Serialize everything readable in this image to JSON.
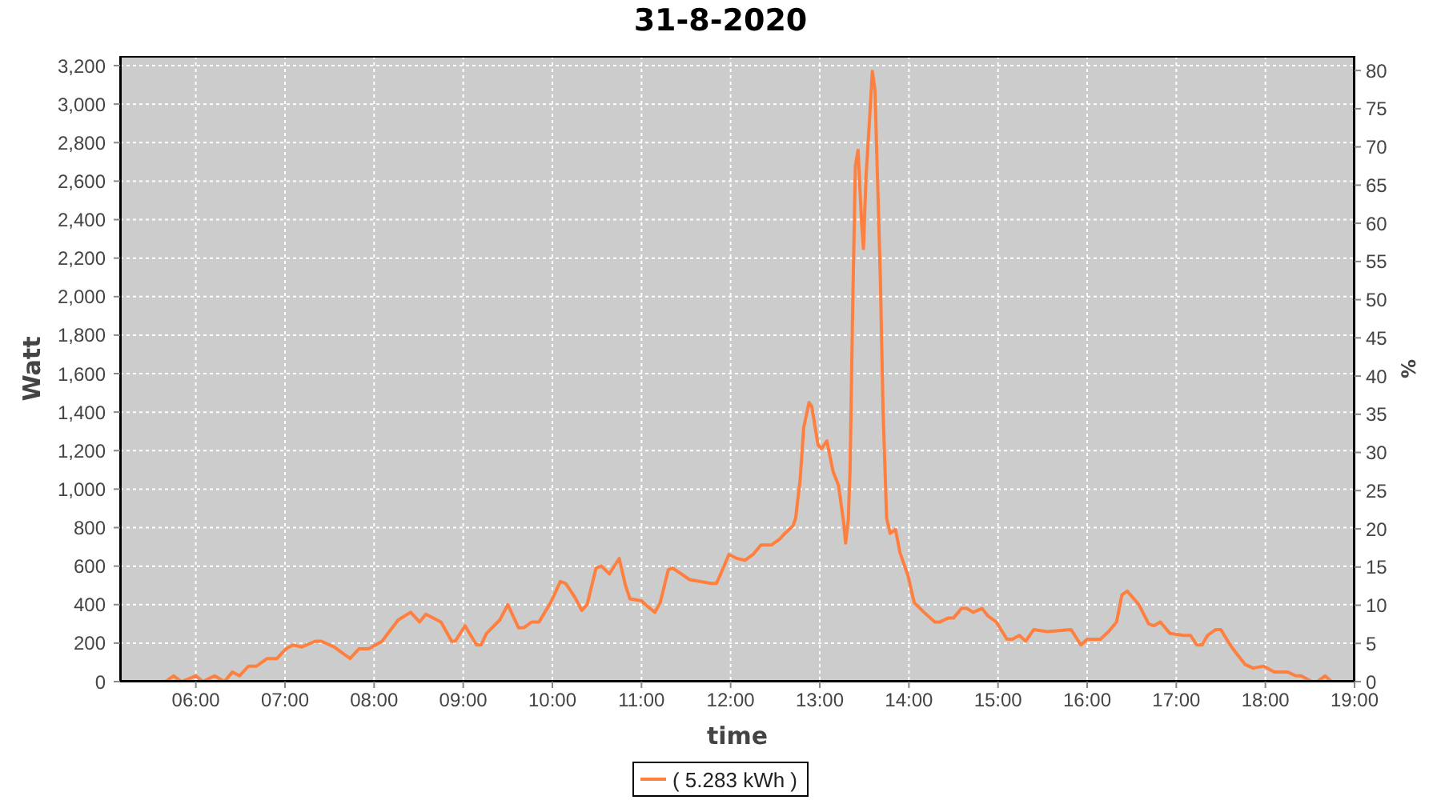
{
  "chart_data": {
    "type": "line",
    "title": "31-8-2020",
    "xlabel": "time",
    "ylabel": "Watt",
    "y2label": "%",
    "x": [
      5.39,
      5.66,
      5.75,
      5.84,
      6.0,
      6.08,
      6.21,
      6.32,
      6.41,
      6.49,
      6.59,
      6.68,
      6.8,
      6.91,
      7.01,
      7.09,
      7.19,
      7.34,
      7.41,
      7.55,
      7.73,
      7.83,
      7.94,
      8.09,
      8.17,
      8.27,
      8.41,
      8.51,
      8.58,
      8.75,
      8.87,
      8.91,
      9.02,
      9.15,
      9.2,
      9.26,
      9.41,
      9.5,
      9.62,
      9.68,
      9.77,
      9.85,
      9.98,
      10.09,
      10.15,
      10.25,
      10.33,
      10.39,
      10.49,
      10.55,
      10.64,
      10.75,
      10.82,
      10.87,
      11.0,
      11.07,
      11.15,
      11.21,
      11.3,
      11.35,
      11.54,
      11.78,
      11.84,
      11.88,
      11.98,
      12.07,
      12.16,
      12.25,
      12.34,
      12.46,
      12.55,
      12.61,
      12.7,
      12.73,
      12.78,
      12.82,
      12.88,
      12.91,
      12.98,
      13.02,
      13.08,
      13.15,
      13.21,
      13.27,
      13.29,
      13.32,
      13.34,
      13.37,
      13.4,
      13.43,
      13.47,
      13.49,
      13.52,
      13.56,
      13.59,
      13.62,
      13.64,
      13.68,
      13.71,
      13.75,
      13.79,
      13.85,
      13.9,
      13.99,
      14.06,
      14.17,
      14.29,
      14.35,
      14.44,
      14.5,
      14.59,
      14.65,
      14.72,
      14.82,
      14.89,
      14.98,
      15.1,
      15.16,
      15.24,
      15.31,
      15.4,
      15.55,
      15.82,
      15.93,
      16.0,
      16.15,
      16.24,
      16.33,
      16.39,
      16.45,
      16.58,
      16.69,
      16.75,
      16.82,
      16.93,
      17.08,
      17.16,
      17.23,
      17.29,
      17.35,
      17.44,
      17.5,
      17.62,
      17.77,
      17.86,
      17.98,
      18.1,
      18.25,
      18.34,
      18.4,
      18.52,
      18.58,
      18.67,
      18.74
    ],
    "series": [
      {
        "name": "( 5.283 kWh )",
        "color": "#ff7f3f",
        "values": [
          0,
          0,
          30,
          0,
          30,
          0,
          30,
          0,
          50,
          30,
          80,
          80,
          120,
          120,
          170,
          190,
          180,
          210,
          210,
          180,
          120,
          170,
          170,
          210,
          260,
          320,
          360,
          310,
          350,
          310,
          210,
          210,
          290,
          190,
          190,
          250,
          320,
          400,
          280,
          280,
          310,
          310,
          410,
          520,
          510,
          440,
          370,
          400,
          590,
          600,
          560,
          640,
          500,
          430,
          420,
          390,
          360,
          410,
          580,
          590,
          530,
          510,
          510,
          550,
          660,
          640,
          630,
          660,
          710,
          710,
          740,
          770,
          810,
          850,
          1050,
          1320,
          1450,
          1430,
          1230,
          1210,
          1250,
          1090,
          1020,
          820,
          720,
          840,
          1100,
          1960,
          2680,
          2760,
          2380,
          2250,
          2630,
          2930,
          3170,
          3070,
          2740,
          2100,
          1410,
          850,
          770,
          790,
          670,
          550,
          410,
          360,
          310,
          310,
          330,
          330,
          380,
          380,
          360,
          380,
          340,
          310,
          220,
          220,
          240,
          210,
          270,
          260,
          270,
          190,
          220,
          220,
          260,
          310,
          450,
          470,
          400,
          300,
          290,
          310,
          250,
          240,
          240,
          190,
          190,
          240,
          270,
          270,
          180,
          90,
          70,
          80,
          50,
          50,
          30,
          30,
          0,
          0,
          30,
          0
        ]
      }
    ],
    "xlim": [
      5.15,
      19
    ],
    "xticks": [
      {
        "value": 6,
        "label": "06:00"
      },
      {
        "value": 7,
        "label": "07:00"
      },
      {
        "value": 8,
        "label": "08:00"
      },
      {
        "value": 9,
        "label": "09:00"
      },
      {
        "value": 10,
        "label": "10:00"
      },
      {
        "value": 11,
        "label": "11:00"
      },
      {
        "value": 12,
        "label": "12:00"
      },
      {
        "value": 13,
        "label": "13:00"
      },
      {
        "value": 14,
        "label": "14:00"
      },
      {
        "value": 15,
        "label": "15:00"
      },
      {
        "value": 16,
        "label": "16:00"
      },
      {
        "value": 17,
        "label": "17:00"
      },
      {
        "value": 18,
        "label": "18:00"
      },
      {
        "value": 19,
        "label": "19:00"
      }
    ],
    "ylim": [
      0,
      3250
    ],
    "yticks": [
      0,
      200,
      400,
      600,
      800,
      {
        "value": 1000,
        "label": "1,000"
      },
      {
        "value": 1200,
        "label": "1,200"
      },
      {
        "value": 1400,
        "label": "1,400"
      },
      {
        "value": 1600,
        "label": "1,600"
      },
      {
        "value": 1800,
        "label": "1,800"
      },
      {
        "value": 2000,
        "label": "2,000"
      },
      {
        "value": 2200,
        "label": "2,200"
      },
      {
        "value": 2400,
        "label": "2,400"
      },
      {
        "value": 2600,
        "label": "2,600"
      },
      {
        "value": 2800,
        "label": "2,800"
      },
      {
        "value": 3000,
        "label": "3,000"
      },
      {
        "value": 3200,
        "label": "3,200"
      }
    ],
    "y2lim": [
      0,
      81.9
    ],
    "y2ticks": [
      0,
      5,
      10,
      15,
      20,
      25,
      30,
      35,
      40,
      45,
      50,
      55,
      60,
      65,
      70,
      75,
      80
    ],
    "grid": true,
    "legend": "bottom"
  }
}
